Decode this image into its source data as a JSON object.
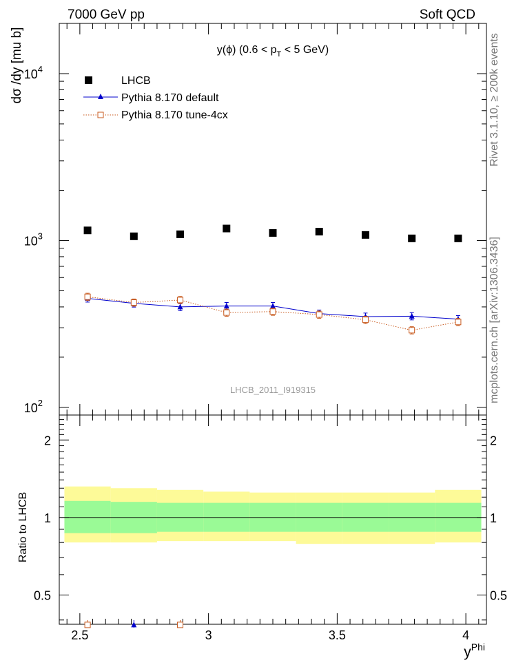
{
  "header": {
    "left": "7000 GeV pp",
    "right": "Soft QCD"
  },
  "side_labels": {
    "rivet": "Rivet 3.1.10, ≥ 200k events",
    "mcplots": "mcplots.cern.ch [arXiv:1306.3436]"
  },
  "watermark": "LHCB_2011_I919315",
  "chart_data": [
    {
      "type": "scatter",
      "role": "main",
      "title": "y(ϕ) (0.6 < p_T < 5 GeV)",
      "title_parts": {
        "pre": "y(ϕ) (0.6 < p",
        "sub": "T",
        "post": " < 5 GeV)"
      },
      "ylabel": "dσ /dy [mu b]",
      "yscale": "log",
      "ylim": [
        90,
        20000
      ],
      "xlim": [
        2.42,
        4.08
      ],
      "yticks": [
        {
          "value": 100,
          "base": "10",
          "exp": "2"
        },
        {
          "value": 1000,
          "base": "10",
          "exp": "3"
        },
        {
          "value": 10000,
          "base": "10",
          "exp": "4"
        }
      ],
      "x": [
        2.53,
        2.71,
        2.89,
        3.07,
        3.25,
        3.43,
        3.61,
        3.79,
        3.97
      ],
      "series": [
        {
          "name": "LHCB",
          "color": "#000000",
          "marker": "square-filled",
          "values": [
            1150,
            1060,
            1090,
            1180,
            1110,
            1130,
            1080,
            1030,
            1030
          ]
        },
        {
          "name": "Pythia 8.170 default",
          "color": "#0000cc",
          "marker": "triangle",
          "line": "solid",
          "values": [
            450,
            420,
            400,
            405,
            405,
            365,
            350,
            352,
            338
          ]
        },
        {
          "name": "Pythia 8.170 tune-4cx",
          "color": "#c85a1e",
          "marker": "square-open",
          "line": "dotted",
          "values": [
            460,
            425,
            440,
            370,
            375,
            360,
            335,
            290,
            325
          ]
        }
      ]
    },
    {
      "type": "scatter",
      "role": "ratio",
      "ylabel": "Ratio to LHCB",
      "xlabel": "y",
      "xlabel_sup": "Phi",
      "yscale": "log",
      "ylim": [
        0.385,
        2.5
      ],
      "xlim": [
        2.42,
        4.08
      ],
      "yticks": [
        {
          "value": 0.5,
          "label": "0.5"
        },
        {
          "value": 1,
          "label": "1"
        },
        {
          "value": 2,
          "label": "2"
        }
      ],
      "xticks": [
        {
          "value": 2.5,
          "label": "2.5"
        },
        {
          "value": 3,
          "label": "3"
        },
        {
          "value": 3.5,
          "label": "3.5"
        },
        {
          "value": 4,
          "label": "4"
        }
      ],
      "bands": {
        "edges": [
          2.44,
          2.62,
          2.8,
          2.98,
          3.16,
          3.34,
          3.52,
          3.7,
          3.88,
          4.06
        ],
        "yellow_lo": [
          0.8,
          0.8,
          0.81,
          0.81,
          0.81,
          0.79,
          0.79,
          0.79,
          0.8
        ],
        "yellow_hi": [
          1.32,
          1.3,
          1.28,
          1.26,
          1.25,
          1.25,
          1.25,
          1.25,
          1.28
        ],
        "green_lo": [
          0.87,
          0.87,
          0.88,
          0.88,
          0.88,
          0.88,
          0.88,
          0.88,
          0.88
        ],
        "green_hi": [
          1.16,
          1.15,
          1.14,
          1.14,
          1.14,
          1.14,
          1.14,
          1.14,
          1.14
        ]
      },
      "reference_line": 1,
      "series": [
        {
          "name": "Pythia 8.170 default",
          "color": "#0000cc",
          "marker": "triangle",
          "values": [
            null,
            0.39,
            null,
            null,
            null,
            null,
            null,
            null,
            null
          ]
        },
        {
          "name": "Pythia 8.170 tune-4cx",
          "color": "#c85a1e",
          "marker": "square-open",
          "values": [
            0.39,
            null,
            0.39,
            null,
            null,
            null,
            null,
            null,
            null
          ]
        }
      ]
    }
  ]
}
